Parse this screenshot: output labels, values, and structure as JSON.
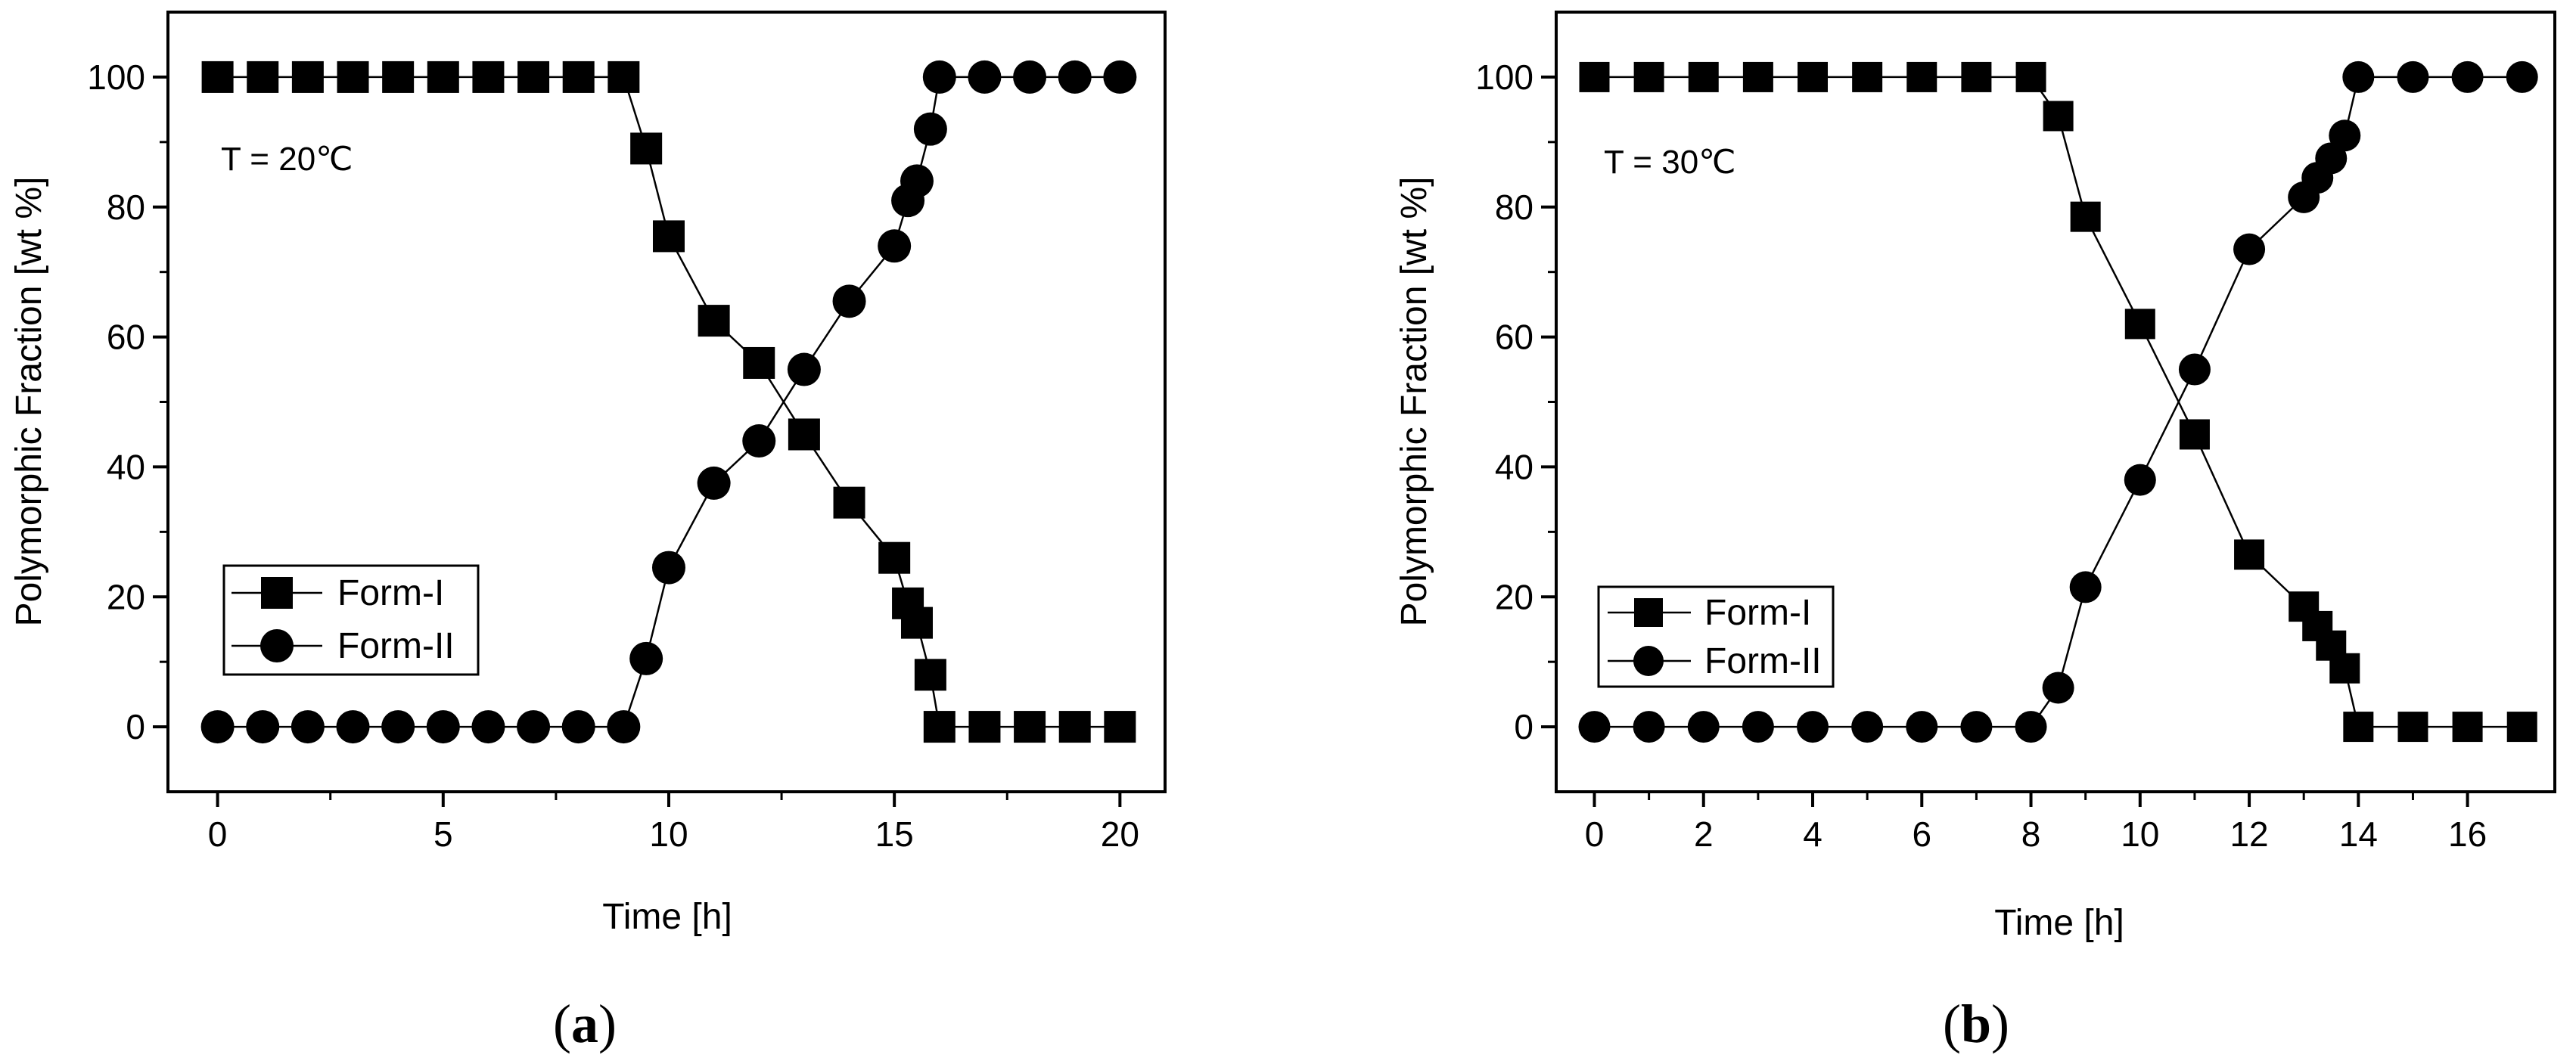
{
  "chart_data": [
    {
      "type": "line",
      "panel": "a",
      "panel_open": "(",
      "panel_letter": "a",
      "panel_close": ")",
      "annotation": "T = 20℃",
      "xlabel": "Time [h]",
      "ylabel": "Polymorphic Fraction [wt %]",
      "xlim": [
        -1.1,
        21
      ],
      "ylim": [
        -10,
        110
      ],
      "xticks": [
        0,
        5,
        10,
        15,
        20
      ],
      "yticks": [
        0,
        20,
        40,
        60,
        80,
        100
      ],
      "legend_position": "bottom-left",
      "series": [
        {
          "name": "Form-I",
          "marker": "square",
          "x": [
            0,
            1,
            2,
            3,
            4,
            5,
            6,
            7,
            8,
            9,
            9.5,
            10,
            11,
            12,
            13,
            14,
            15,
            15.3,
            15.5,
            15.8,
            16,
            17,
            18,
            19,
            20
          ],
          "y": [
            100,
            100,
            100,
            100,
            100,
            100,
            100,
            100,
            100,
            100,
            89,
            75.5,
            62.5,
            56,
            45,
            34.5,
            26,
            19,
            16,
            8,
            0,
            0,
            0,
            0,
            0
          ]
        },
        {
          "name": "Form-II",
          "marker": "circle",
          "x": [
            0,
            1,
            2,
            3,
            4,
            5,
            6,
            7,
            8,
            9,
            9.5,
            10,
            11,
            12,
            13,
            14,
            15,
            15.3,
            15.5,
            15.8,
            16,
            17,
            18,
            19,
            20
          ],
          "y": [
            0,
            0,
            0,
            0,
            0,
            0,
            0,
            0,
            0,
            0,
            10.5,
            24.5,
            37.5,
            44,
            55,
            65.5,
            74,
            81,
            84,
            92,
            100,
            100,
            100,
            100,
            100
          ]
        }
      ]
    },
    {
      "type": "line",
      "panel": "b",
      "panel_open": "(",
      "panel_letter": "b",
      "panel_close": ")",
      "annotation": "T = 30℃",
      "xlabel": "Time [h]",
      "ylabel": "Polymorphic Fraction [wt %]",
      "xlim": [
        -0.7,
        17.6
      ],
      "ylim": [
        -10,
        110
      ],
      "xticks": [
        0,
        2,
        4,
        6,
        8,
        10,
        12,
        14,
        16
      ],
      "yticks": [
        0,
        20,
        40,
        60,
        80,
        100
      ],
      "legend_position": "bottom-left",
      "series": [
        {
          "name": "Form-I",
          "marker": "square",
          "x": [
            0,
            1,
            2,
            3,
            4,
            5,
            6,
            7,
            8,
            8.5,
            9,
            10,
            11,
            12,
            13,
            13.25,
            13.5,
            13.75,
            14,
            15,
            16,
            17
          ],
          "y": [
            100,
            100,
            100,
            100,
            100,
            100,
            100,
            100,
            100,
            94,
            78.5,
            62,
            45,
            26.5,
            18.5,
            15.5,
            12.5,
            9,
            0,
            0,
            0,
            0
          ]
        },
        {
          "name": "Form-II",
          "marker": "circle",
          "x": [
            0,
            1,
            2,
            3,
            4,
            5,
            6,
            7,
            8,
            8.5,
            9,
            10,
            11,
            12,
            13,
            13.25,
            13.5,
            13.75,
            14,
            15,
            16,
            17
          ],
          "y": [
            0,
            0,
            0,
            0,
            0,
            0,
            0,
            0,
            0,
            6,
            21.5,
            38,
            55,
            73.5,
            81.5,
            84.5,
            87.5,
            91,
            100,
            100,
            100,
            100
          ]
        }
      ]
    }
  ]
}
